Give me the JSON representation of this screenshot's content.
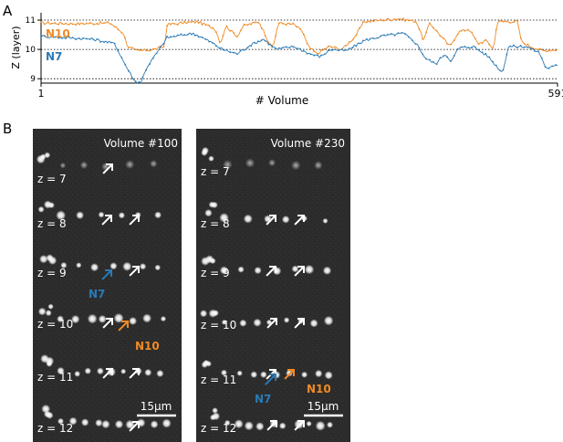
{
  "panel_labels": [
    "A",
    "B"
  ],
  "colors": {
    "N10": "#f08a24",
    "N7": "#2a7ab5",
    "white_arrow": "#ffffff",
    "bg": "#ffffff"
  },
  "chart_data": {
    "type": "line",
    "ylabel": "Z (layer)",
    "xlabel": "# Volume",
    "xlim": [
      1,
      591
    ],
    "ylim": [
      8.85,
      11.25
    ],
    "yticks": [
      9,
      10,
      11
    ],
    "xtick_labels": [
      "1",
      "591"
    ],
    "grid": "dotted horizontal at 9, 10 and 11",
    "legend": "inline labels at left",
    "series": [
      {
        "name": "N10",
        "color": "#f08a24",
        "keyframes": [
          [
            1,
            10.9
          ],
          [
            40,
            10.88
          ],
          [
            80,
            10.9
          ],
          [
            95,
            10.55
          ],
          [
            100,
            10.1
          ],
          [
            110,
            9.95
          ],
          [
            130,
            10.0
          ],
          [
            142,
            10.1
          ],
          [
            145,
            10.85
          ],
          [
            180,
            10.95
          ],
          [
            200,
            10.7
          ],
          [
            206,
            10.2
          ],
          [
            212,
            10.8
          ],
          [
            225,
            10.45
          ],
          [
            232,
            10.8
          ],
          [
            250,
            10.95
          ],
          [
            262,
            10.2
          ],
          [
            266,
            10.05
          ],
          [
            272,
            10.9
          ],
          [
            290,
            10.85
          ],
          [
            300,
            10.6
          ],
          [
            306,
            10.1
          ],
          [
            316,
            9.85
          ],
          [
            330,
            10.1
          ],
          [
            345,
            10.0
          ],
          [
            360,
            10.45
          ],
          [
            370,
            10.95
          ],
          [
            410,
            11.05
          ],
          [
            430,
            10.95
          ],
          [
            438,
            10.3
          ],
          [
            445,
            10.9
          ],
          [
            458,
            10.45
          ],
          [
            468,
            10.1
          ],
          [
            478,
            10.6
          ],
          [
            490,
            10.7
          ],
          [
            500,
            10.2
          ],
          [
            510,
            10.3
          ],
          [
            518,
            10.0
          ],
          [
            522,
            10.95
          ],
          [
            545,
            10.95
          ],
          [
            550,
            10.25
          ],
          [
            560,
            10.1
          ],
          [
            575,
            9.95
          ],
          [
            591,
            10.0
          ]
        ]
      },
      {
        "name": "N7",
        "color": "#2a7ab5",
        "keyframes": [
          [
            1,
            10.45
          ],
          [
            30,
            10.4
          ],
          [
            60,
            10.35
          ],
          [
            85,
            10.2
          ],
          [
            95,
            9.6
          ],
          [
            108,
            8.9
          ],
          [
            115,
            8.88
          ],
          [
            122,
            9.4
          ],
          [
            135,
            9.95
          ],
          [
            145,
            10.4
          ],
          [
            175,
            10.55
          ],
          [
            195,
            10.25
          ],
          [
            208,
            10.0
          ],
          [
            225,
            9.85
          ],
          [
            240,
            10.15
          ],
          [
            255,
            10.35
          ],
          [
            270,
            10.0
          ],
          [
            290,
            10.1
          ],
          [
            308,
            9.85
          ],
          [
            320,
            9.75
          ],
          [
            332,
            10.0
          ],
          [
            350,
            9.95
          ],
          [
            370,
            10.3
          ],
          [
            390,
            10.45
          ],
          [
            415,
            10.55
          ],
          [
            430,
            10.2
          ],
          [
            440,
            9.7
          ],
          [
            452,
            9.5
          ],
          [
            462,
            9.85
          ],
          [
            470,
            9.6
          ],
          [
            478,
            10.05
          ],
          [
            495,
            10.1
          ],
          [
            512,
            9.75
          ],
          [
            528,
            9.2
          ],
          [
            535,
            10.1
          ],
          [
            555,
            10.1
          ],
          [
            570,
            9.9
          ],
          [
            578,
            9.35
          ],
          [
            591,
            9.45
          ]
        ]
      }
    ]
  },
  "panelB": {
    "images": [
      {
        "title": "Volume #100",
        "z_labels": [
          "z = 7",
          "z = 8",
          "z = 9",
          "z = 10",
          "z = 11",
          "z = 12"
        ],
        "n7_label": "N7",
        "n10_label": "N10",
        "scalebar": "15μm"
      },
      {
        "title": "Volume #230",
        "z_labels": [
          "z = 7",
          "z = 8",
          "z = 9",
          "z = 10",
          "z = 11",
          "z = 12"
        ],
        "n7_label": "N7",
        "n10_label": "N10",
        "scalebar": "15μm"
      }
    ]
  }
}
